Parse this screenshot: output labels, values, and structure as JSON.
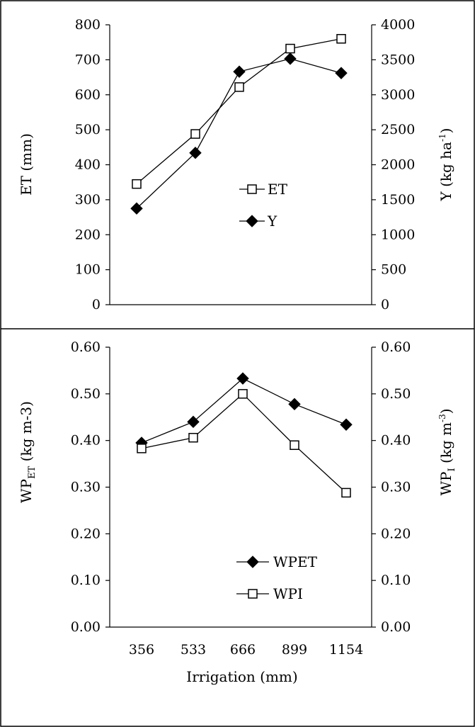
{
  "chart_data": [
    {
      "type": "line",
      "x": [
        356,
        533,
        666,
        899,
        1154
      ],
      "ylabel_left": "ET (mm)",
      "ylabel_right": {
        "base": "Y (kg  ha",
        "sup": "-1",
        "tail": ")"
      },
      "ylim_left": [
        0,
        800
      ],
      "ylim_right": [
        0,
        4000
      ],
      "yticks_left": [
        "0",
        "100",
        "200",
        "300",
        "400",
        "500",
        "600",
        "700",
        "800"
      ],
      "yticks_right": [
        "0",
        "500",
        "1000",
        "1500",
        "2000",
        "2500",
        "3000",
        "3500",
        "4000"
      ],
      "legend_position": "center",
      "series": [
        {
          "name": "ET",
          "axis": "left",
          "marker": "open-square",
          "values": [
            345,
            488,
            622,
            732,
            760
          ]
        },
        {
          "name": "Y",
          "axis": "right",
          "marker": "filled-diamond",
          "values": [
            1375,
            2170,
            3330,
            3515,
            3310
          ]
        }
      ]
    },
    {
      "type": "line",
      "categories": [
        "356",
        "533",
        "666",
        "899",
        "1154"
      ],
      "xlabel": "Irrigation (mm)",
      "ylabel_left": {
        "base": "WP",
        "sub": "ET",
        "tail": " (kg m-3)"
      },
      "ylabel_right": {
        "base": "WP",
        "sub": "I",
        "tail": " (kg m",
        "sup": "-3",
        "end": ")"
      },
      "ylim_left": [
        0,
        0.6
      ],
      "ylim_right": [
        0,
        0.6
      ],
      "yticks_left": [
        "0.00",
        "0.10",
        "0.20",
        "0.30",
        "0.40",
        "0.50",
        "0.60"
      ],
      "yticks_right": [
        "0.00",
        "0.10",
        "0.20",
        "0.30",
        "0.40",
        "0.50",
        "0.60"
      ],
      "legend_position": "lower-center",
      "series": [
        {
          "name": "WPET",
          "axis": "left",
          "marker": "filled-diamond",
          "values": [
            0.395,
            0.44,
            0.533,
            0.478,
            0.434
          ]
        },
        {
          "name": "WPI",
          "axis": "right",
          "marker": "open-square",
          "values": [
            0.383,
            0.406,
            0.5,
            0.39,
            0.288
          ]
        }
      ]
    }
  ]
}
